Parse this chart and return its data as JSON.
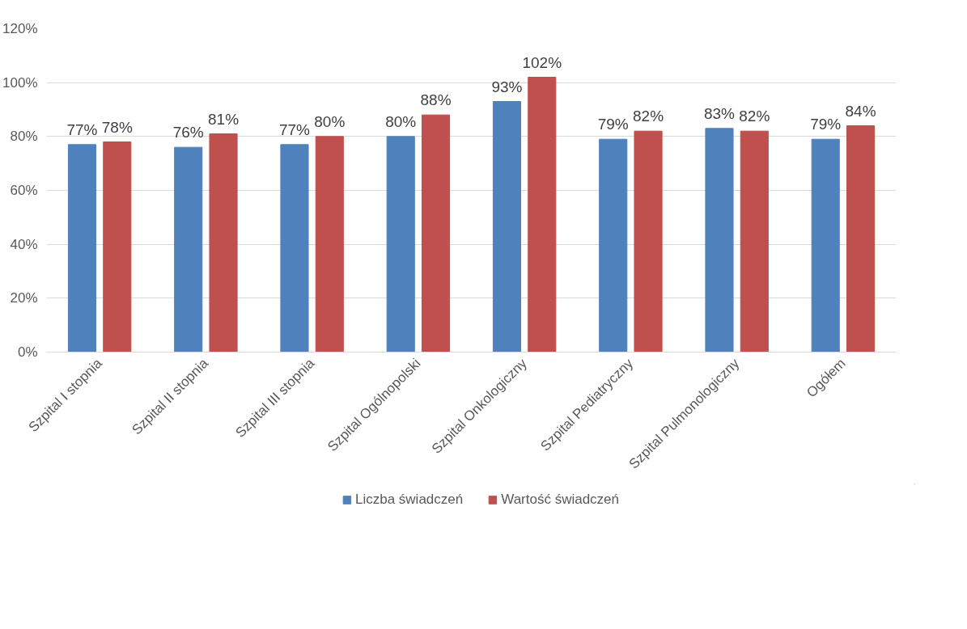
{
  "chart_data": {
    "type": "bar",
    "categories": [
      "Szpital I stopnia",
      "Szpital II stopnia",
      "Szpital III stopnia",
      "Szpital Ogólnopolski",
      "Szpital Onkologiczny",
      "Szpital Pediatryczny",
      "Szpital Pulmonologiczny",
      "Ogółem"
    ],
    "series": [
      {
        "name": "Liczba świadczeń",
        "color": "#4f81bd",
        "values": [
          77,
          76,
          77,
          80,
          93,
          79,
          83,
          79
        ],
        "value_labels": [
          "77%",
          "76%",
          "77%",
          "80%",
          "93%",
          "79%",
          "83%",
          "79%"
        ]
      },
      {
        "name": "Wartość świadczeń",
        "color": "#c0504d",
        "values": [
          78,
          81,
          80,
          88,
          102,
          82,
          82,
          84
        ],
        "value_labels": [
          "78%",
          "81%",
          "80%",
          "88%",
          "102%",
          "82%",
          "82%",
          "84%"
        ]
      }
    ],
    "ylim": [
      0,
      120
    ],
    "yticks": [
      {
        "value": 0,
        "label": "0%"
      },
      {
        "value": 20,
        "label": "20%"
      },
      {
        "value": 40,
        "label": "40%"
      },
      {
        "value": 60,
        "label": "60%"
      },
      {
        "value": 80,
        "label": "80%"
      },
      {
        "value": 100,
        "label": "100%"
      },
      {
        "value": 120,
        "label": "120%"
      }
    ],
    "grid": "y",
    "legend": "bottom"
  }
}
